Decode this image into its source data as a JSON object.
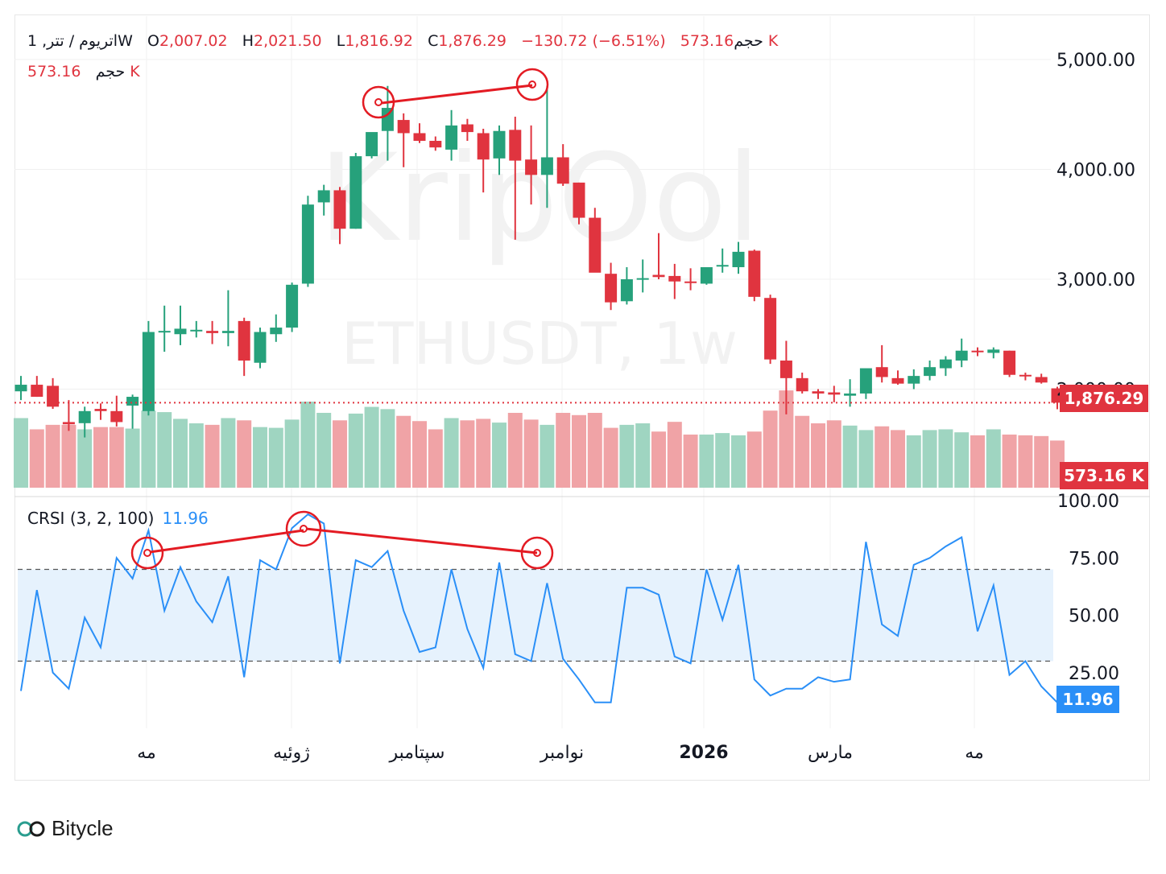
{
  "legend": {
    "symbol": "اتریوم / تتر, 1W",
    "open_label": "O",
    "open": "2,007.02",
    "high_label": "H",
    "high": "2,021.50",
    "low_label": "L",
    "low": "1,816.92",
    "close_label": "C",
    "close": "1,876.29",
    "change": "−130.72 (−6.51%)",
    "volume_label": "حجم",
    "volume": "573.16 K"
  },
  "watermark": {
    "brand": "KripOol",
    "ticker": "ETHUSDT, 1w"
  },
  "price_tag": "1,876.29",
  "volume_tag": "573.16 K",
  "crsi_legend": {
    "name": "CRSI (3, 2, 100)",
    "value": "11.96"
  },
  "crsi_tag": "11.96",
  "footer_brand": "Bitycle",
  "colors": {
    "up": "#26a17b",
    "down": "#e0343f",
    "up_vol": "#9fd5c1",
    "down_vol": "#f0a3a6",
    "rsi_line": "#2a8ff7",
    "band": "#e6f2fd",
    "annotation": "#e31b23"
  },
  "chart_data": [
    {
      "type": "candlestick",
      "title": "ETHUSDT, 1w",
      "ylim": [
        1000,
        5450
      ],
      "y_ticks": [
        "5,000.00",
        "4,000.00",
        "3,000.00",
        "2,000.00"
      ],
      "x_ticks": [
        "مه",
        "ژوئیه",
        "سپتامبر",
        "نوامبر",
        "2026",
        "مارس",
        "مه"
      ],
      "ohlc": [
        [
          1980,
          2120,
          1900,
          2040
        ],
        [
          2040,
          2120,
          1930,
          1930
        ],
        [
          2030,
          2100,
          1820,
          1840
        ],
        [
          1700,
          1900,
          1620,
          1680
        ],
        [
          1690,
          1840,
          1560,
          1800
        ],
        [
          1820,
          1870,
          1720,
          1800
        ],
        [
          1800,
          1940,
          1660,
          1700
        ],
        [
          1850,
          1950,
          1640,
          1930
        ],
        [
          1800,
          2620,
          1760,
          2520
        ],
        [
          2520,
          2760,
          2340,
          2530
        ],
        [
          2500,
          2760,
          2400,
          2550
        ],
        [
          2530,
          2620,
          2470,
          2540
        ],
        [
          2530,
          2620,
          2410,
          2510
        ],
        [
          2510,
          2900,
          2390,
          2530
        ],
        [
          2620,
          2650,
          2120,
          2260
        ],
        [
          2240,
          2560,
          2190,
          2520
        ],
        [
          2500,
          2680,
          2430,
          2560
        ],
        [
          2560,
          2970,
          2520,
          2950
        ],
        [
          2960,
          3760,
          2930,
          3680
        ],
        [
          3700,
          3860,
          3580,
          3810
        ],
        [
          3810,
          3840,
          3320,
          3460
        ],
        [
          3460,
          4150,
          3460,
          4120
        ],
        [
          4120,
          4300,
          4100,
          4340
        ],
        [
          4350,
          4760,
          4080,
          4560
        ],
        [
          4450,
          4510,
          4020,
          4330
        ],
        [
          4330,
          4420,
          4240,
          4260
        ],
        [
          4260,
          4300,
          4170,
          4200
        ],
        [
          4180,
          4540,
          4080,
          4400
        ],
        [
          4410,
          4460,
          4260,
          4340
        ],
        [
          4330,
          4370,
          3790,
          4090
        ],
        [
          4100,
          4400,
          3950,
          4350
        ],
        [
          4360,
          4480,
          3360,
          4080
        ],
        [
          4090,
          4400,
          3680,
          3950
        ],
        [
          3950,
          4760,
          3650,
          4110
        ],
        [
          4110,
          4230,
          3850,
          3870
        ],
        [
          3880,
          3880,
          3500,
          3560
        ],
        [
          3560,
          3650,
          3070,
          3060
        ],
        [
          3050,
          3150,
          2720,
          2790
        ],
        [
          2800,
          3110,
          2770,
          3000
        ],
        [
          3010,
          3180,
          2880,
          3010
        ],
        [
          3040,
          3420,
          3000,
          3020
        ],
        [
          3030,
          3140,
          2820,
          2980
        ],
        [
          2980,
          3100,
          2900,
          2970
        ],
        [
          2960,
          3100,
          2950,
          3110
        ],
        [
          3120,
          3280,
          3060,
          3130
        ],
        [
          3110,
          3340,
          3050,
          3250
        ],
        [
          3260,
          3270,
          2800,
          2840
        ],
        [
          2830,
          2860,
          2230,
          2270
        ],
        [
          2260,
          2440,
          1770,
          2100
        ],
        [
          2100,
          2150,
          1960,
          1980
        ],
        [
          1980,
          2000,
          1910,
          1960
        ],
        [
          1970,
          2030,
          1880,
          1950
        ],
        [
          1940,
          2090,
          1840,
          1960
        ],
        [
          1960,
          2180,
          1910,
          2190
        ],
        [
          2200,
          2400,
          2060,
          2110
        ],
        [
          2100,
          2170,
          2040,
          2050
        ],
        [
          2050,
          2180,
          2000,
          2120
        ],
        [
          2120,
          2260,
          2080,
          2200
        ],
        [
          2190,
          2300,
          2120,
          2270
        ],
        [
          2260,
          2460,
          2200,
          2350
        ],
        [
          2350,
          2380,
          2300,
          2340
        ],
        [
          2330,
          2380,
          2280,
          2360
        ],
        [
          2350,
          2350,
          2110,
          2130
        ],
        [
          2130,
          2150,
          2080,
          2120
        ],
        [
          2110,
          2140,
          2050,
          2060
        ],
        [
          2007.02,
          2021.5,
          1816.92,
          1876.29
        ]
      ],
      "volume": [
        93,
        78,
        84,
        84,
        78,
        81,
        81,
        79,
        103,
        101,
        92,
        86,
        84,
        93,
        90,
        81,
        80,
        91,
        115,
        100,
        90,
        99,
        108,
        105,
        96,
        89,
        78,
        93,
        90,
        92,
        87,
        100,
        91,
        84,
        100,
        97,
        100,
        80,
        84,
        86,
        75,
        88,
        71,
        71,
        73,
        70,
        75,
        103,
        130,
        96,
        86,
        90,
        83,
        77,
        82,
        77,
        70,
        77,
        78,
        74,
        70,
        78,
        71,
        70,
        69,
        63
      ]
    },
    {
      "type": "line",
      "title": "CRSI (3, 2, 100)",
      "ylim": [
        0,
        100
      ],
      "y_ticks": [
        "100.00",
        "75.00",
        "50.00",
        "25.00"
      ],
      "band": [
        30,
        70
      ],
      "values": [
        17,
        61,
        25,
        18,
        49,
        36,
        75,
        66,
        87,
        52,
        71,
        56,
        47,
        67,
        23,
        74,
        70,
        88,
        94,
        90,
        29,
        74,
        71,
        78,
        52,
        34,
        36,
        70,
        44,
        27,
        73,
        33,
        30,
        64,
        31,
        22,
        12,
        12,
        62,
        62,
        59,
        32,
        29,
        70,
        48,
        72,
        22,
        15,
        18,
        18,
        23,
        21,
        22,
        82,
        46,
        41,
        72,
        75,
        80,
        84,
        43,
        63,
        24,
        30,
        19,
        11.96
      ]
    }
  ]
}
